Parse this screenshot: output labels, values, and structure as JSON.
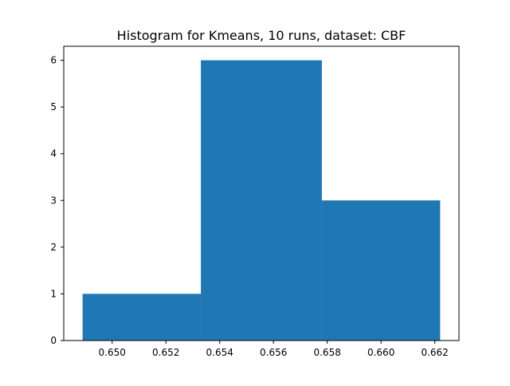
{
  "chart_data": {
    "type": "bar",
    "title": "Histogram for Kmeans, 10 runs, dataset: CBF",
    "xlabel": "",
    "ylabel": "",
    "bins": [
      {
        "start": 0.6489,
        "end": 0.6533,
        "count": 1
      },
      {
        "start": 0.6533,
        "end": 0.6578,
        "count": 6
      },
      {
        "start": 0.6578,
        "end": 0.6622,
        "count": 3
      }
    ],
    "xlim": [
      0.6482,
      0.6629
    ],
    "ylim": [
      0,
      6.3
    ],
    "xticks": [
      0.65,
      0.652,
      0.654,
      0.656,
      0.658,
      0.66,
      0.662
    ],
    "xtick_labels": [
      "0.650",
      "0.652",
      "0.654",
      "0.656",
      "0.658",
      "0.660",
      "0.662"
    ],
    "yticks": [
      0,
      1,
      2,
      3,
      4,
      5,
      6
    ],
    "ytick_labels": [
      "0",
      "1",
      "2",
      "3",
      "4",
      "5",
      "6"
    ],
    "grid": false,
    "legend": "none",
    "bar_color": "#1f77b4"
  }
}
